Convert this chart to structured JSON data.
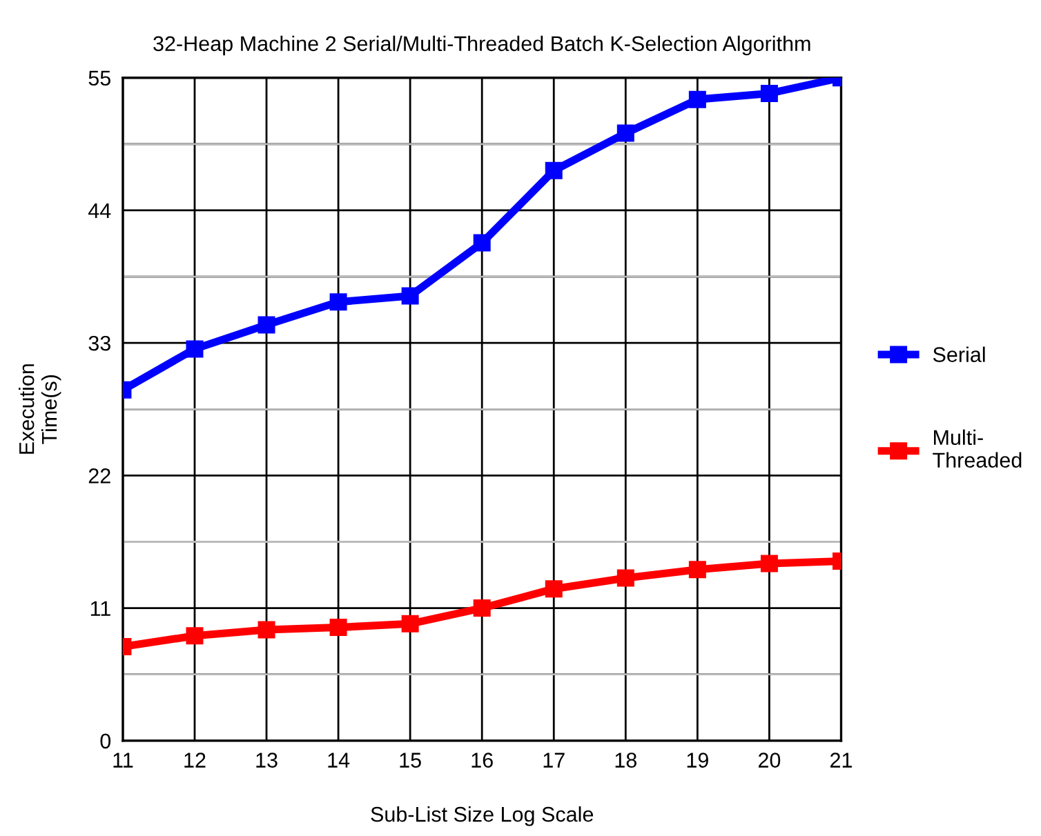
{
  "chart_data": {
    "type": "line",
    "title": "32-Heap Machine 2 Serial/Multi-Threaded Batch K-Selection Algorithm",
    "xlabel": "Sub-List Size Log Scale",
    "ylabel": "Execution\nTime(s)",
    "x": [
      11,
      12,
      13,
      14,
      15,
      16,
      17,
      18,
      19,
      20,
      21
    ],
    "series": [
      {
        "name": "Serial",
        "color": "#0000ff",
        "values": [
          29.1,
          32.5,
          34.5,
          36.4,
          36.9,
          41.3,
          47.3,
          50.4,
          53.2,
          53.7,
          55.0
        ]
      },
      {
        "name": "Multi-\nThreaded",
        "color": "#ff0000",
        "values": [
          7.8,
          8.7,
          9.2,
          9.4,
          9.7,
          11.0,
          12.6,
          13.5,
          14.2,
          14.7,
          14.9
        ]
      }
    ],
    "xlim": [
      11,
      21
    ],
    "xticks": [
      11,
      12,
      13,
      14,
      15,
      16,
      17,
      18,
      19,
      20,
      21
    ],
    "ylim": [
      0,
      55
    ],
    "yticks": [
      0,
      {
        "value": 5.5,
        "label": null
      },
      11,
      {
        "value": 16.5,
        "label": null
      },
      22,
      {
        "value": 27.5,
        "label": null
      },
      33,
      {
        "value": 38.5,
        "label": null
      },
      44,
      {
        "value": 49.5,
        "label": null
      },
      55
    ],
    "grid": true,
    "legend": "right",
    "marker": "square",
    "line_style": "solid"
  }
}
